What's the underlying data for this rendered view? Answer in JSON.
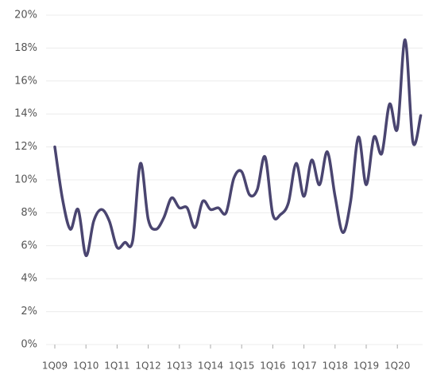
{
  "chart_data": {
    "type": "line",
    "categories": [
      "1Q09",
      null,
      null,
      null,
      "1Q10",
      null,
      null,
      null,
      "1Q11",
      null,
      null,
      null,
      "1Q12",
      null,
      null,
      null,
      "1Q13",
      null,
      null,
      null,
      "1Q14",
      null,
      null,
      null,
      "1Q15",
      null,
      null,
      null,
      "1Q16",
      null,
      null,
      null,
      "1Q17",
      null,
      null,
      null,
      "1Q18",
      null,
      null,
      null,
      "1Q19",
      null,
      null,
      null,
      "1Q20",
      null,
      null,
      null
    ],
    "series": [
      {
        "color": "#4a4570",
        "values": [
          12.0,
          8.8,
          7.0,
          8.2,
          5.4,
          7.5,
          8.2,
          7.5,
          5.9,
          6.2,
          6.3,
          11.0,
          7.6,
          7.0,
          7.7,
          8.9,
          8.3,
          8.3,
          7.1,
          8.7,
          8.2,
          8.3,
          8.0,
          10.1,
          10.5,
          9.1,
          9.4,
          11.4,
          7.9,
          7.9,
          8.6,
          11.0,
          9.0,
          11.2,
          9.7,
          11.7,
          9.0,
          6.8,
          8.7,
          12.6,
          9.7,
          12.6,
          11.6,
          14.6,
          13.1,
          18.5,
          12.3,
          13.9
        ]
      }
    ],
    "ylim": [
      0,
      20
    ],
    "yticks": [
      {
        "value": 0,
        "label": "0%"
      },
      {
        "value": 2,
        "label": "2%"
      },
      {
        "value": 4,
        "label": "4%"
      },
      {
        "value": 6,
        "label": "6%"
      },
      {
        "value": 8,
        "label": "8%"
      },
      {
        "value": 10,
        "label": "10%"
      },
      {
        "value": 12,
        "label": "12%"
      },
      {
        "value": 14,
        "label": "14%"
      },
      {
        "value": 16,
        "label": "16%"
      },
      {
        "value": 18,
        "label": "18%"
      },
      {
        "value": 20,
        "label": "20%"
      }
    ],
    "grid": true
  }
}
